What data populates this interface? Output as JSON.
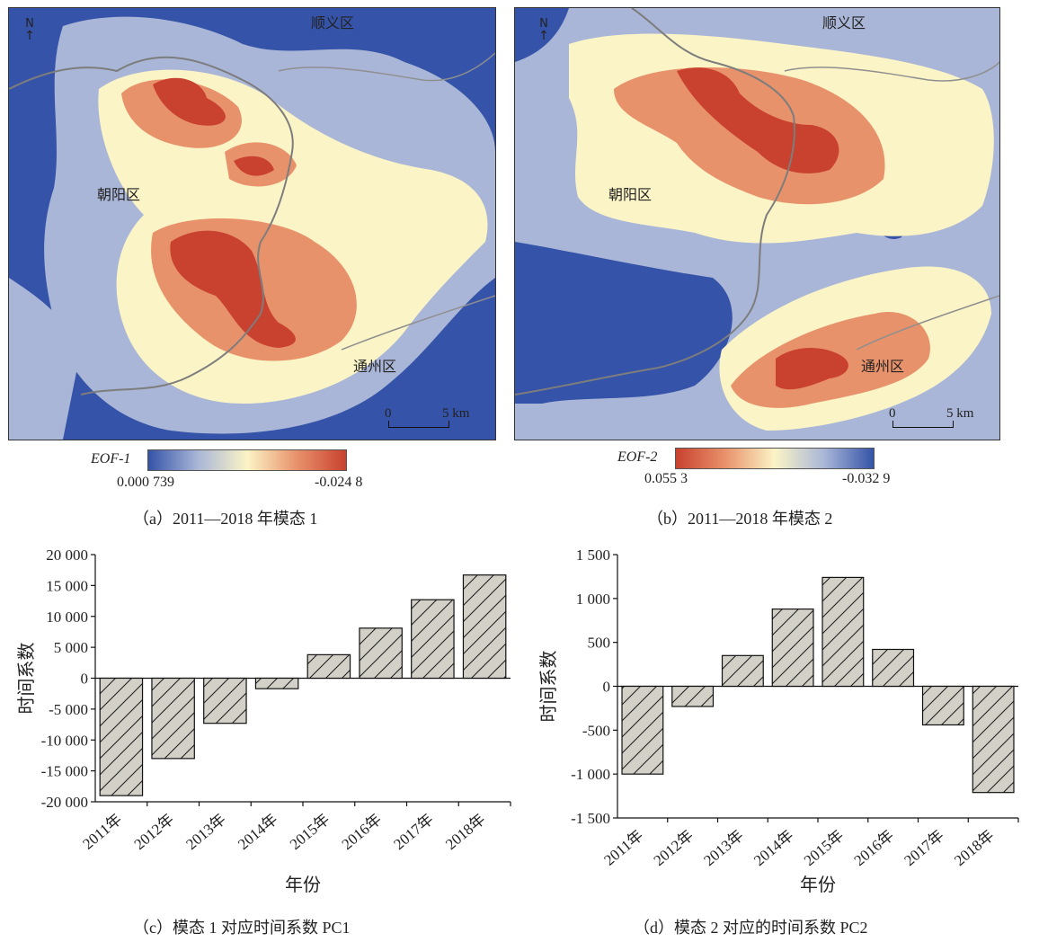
{
  "maps": [
    {
      "id": "a",
      "labels": {
        "north": "N",
        "district_top": "顺义区",
        "district_left": "朝阳区",
        "district_bottom": "通州区"
      },
      "scale": {
        "start": "0",
        "end": "5 km"
      },
      "legend": {
        "name": "EOF-1",
        "value_left": "0.000 739",
        "value_right": "-0.024 8",
        "colors": [
          "#3553a8",
          "#a9b6d7",
          "#fbf4c6",
          "#e8926b",
          "#c9412f"
        ]
      },
      "caption": "（a）2011—2018 年模态 1"
    },
    {
      "id": "b",
      "labels": {
        "north": "N",
        "district_top": "顺义区",
        "district_left": "朝阳区",
        "district_bottom": "通州区"
      },
      "scale": {
        "start": "0",
        "end": "5 km"
      },
      "legend": {
        "name": "EOF-2",
        "value_left": "0.055 3",
        "value_right": "-0.032 9",
        "colors": [
          "#c9412f",
          "#e8926b",
          "#fbf4c6",
          "#a9b6d7",
          "#3553a8"
        ]
      },
      "caption": "（b）2011—2018 年模态 2"
    }
  ],
  "chart_data": [
    {
      "type": "bar",
      "categories": [
        "2011年",
        "2012年",
        "2013年",
        "2014年",
        "2015年",
        "2016年",
        "2017年",
        "2018年"
      ],
      "values": [
        -19000,
        -13000,
        -7300,
        -1700,
        3800,
        8100,
        12700,
        16700
      ],
      "xlabel": "年份",
      "ylabel": "时间系数",
      "ylim": [
        -20000,
        20000
      ],
      "yticks": [
        20000,
        15000,
        10000,
        5000,
        0,
        -5000,
        -10000,
        -15000,
        -20000
      ],
      "ytick_labels": [
        "20 000",
        "15 000",
        "10 000",
        "5 000",
        "0",
        "-5 000",
        "-10 000",
        "-15 000",
        "-20 000"
      ],
      "bar_fill": "#d3d0c8",
      "bar_hatch": "diagonal",
      "grid": false,
      "caption": "（c）模态 1 对应时间系数 PC1"
    },
    {
      "type": "bar",
      "categories": [
        "2011年",
        "2012年",
        "2013年",
        "2014年",
        "2015年",
        "2016年",
        "2017年",
        "2018年"
      ],
      "values": [
        -1000,
        -230,
        350,
        880,
        1240,
        420,
        -440,
        -1210
      ],
      "xlabel": "年份",
      "ylabel": "时间系数",
      "ylim": [
        -1500,
        1500
      ],
      "yticks": [
        1500,
        1000,
        500,
        0,
        -500,
        -1000,
        -1500
      ],
      "ytick_labels": [
        "1 500",
        "1 000",
        "500",
        "0",
        "-500",
        "-1 000",
        "-1 500"
      ],
      "bar_fill": "#d3d0c8",
      "bar_hatch": "diagonal",
      "grid": false,
      "caption": "（d）模态 2 对应的时间系数 PC2"
    }
  ]
}
